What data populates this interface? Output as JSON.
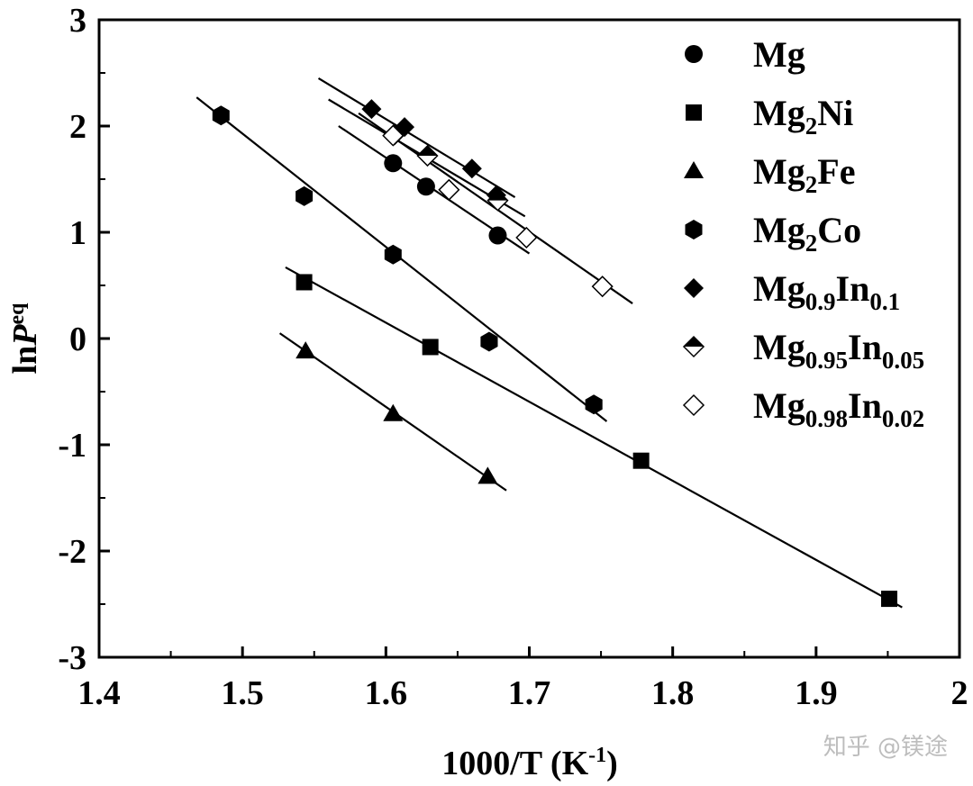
{
  "chart_data": {
    "type": "scatter",
    "xlabel": "1000/T (K",
    "xlabel_sup": "-1",
    "xlabel_close": ")",
    "ylabel": "ln",
    "ylabel_p": "P",
    "ylabel_sup": "eq",
    "xlim": [
      1.4,
      2.0
    ],
    "ylim": [
      -3,
      3
    ],
    "x_ticks": [
      1.4,
      1.5,
      1.6,
      1.7,
      1.8,
      1.9,
      2.0
    ],
    "x_tick_labels": [
      "1.4",
      "1.5",
      "1.6",
      "1.7",
      "1.8",
      "1.9",
      "2"
    ],
    "y_ticks": [
      -3,
      -2,
      -1,
      0,
      1,
      2,
      3
    ],
    "y_tick_labels": [
      "-3",
      "-2",
      "-1",
      "0",
      "1",
      "2",
      "3"
    ],
    "grid": false,
    "legend_position": "top-right",
    "series": [
      {
        "name": "Mg",
        "legend": [
          {
            "t": "Mg",
            "s": ""
          }
        ],
        "marker": "circle",
        "x": [
          1.605,
          1.628,
          1.678
        ],
        "y": [
          1.65,
          1.43,
          0.97
        ],
        "fit": [
          [
            1.567,
            2.0
          ],
          [
            1.7,
            0.8
          ]
        ]
      },
      {
        "name": "Mg2Ni",
        "legend": [
          {
            "t": "Mg",
            "s": ""
          },
          {
            "t": "2",
            "s": "sub"
          },
          {
            "t": "Ni",
            "s": ""
          }
        ],
        "marker": "square",
        "x": [
          1.543,
          1.631,
          1.778,
          1.951
        ],
        "y": [
          0.53,
          -0.08,
          -1.15,
          -2.45
        ],
        "fit": [
          [
            1.53,
            0.67
          ],
          [
            1.96,
            -2.53
          ]
        ]
      },
      {
        "name": "Mg2Fe",
        "legend": [
          {
            "t": "Mg",
            "s": ""
          },
          {
            "t": "2",
            "s": "sub"
          },
          {
            "t": "Fe",
            "s": ""
          }
        ],
        "marker": "triangle",
        "x": [
          1.544,
          1.605,
          1.671
        ],
        "y": [
          -0.12,
          -0.71,
          -1.3
        ],
        "fit": [
          [
            1.526,
            0.05
          ],
          [
            1.684,
            -1.43
          ]
        ]
      },
      {
        "name": "Mg2Co",
        "legend": [
          {
            "t": "Mg",
            "s": ""
          },
          {
            "t": "2",
            "s": "sub"
          },
          {
            "t": "Co",
            "s": ""
          }
        ],
        "marker": "hexagon",
        "x": [
          1.485,
          1.543,
          1.605,
          1.672,
          1.745
        ],
        "y": [
          2.1,
          1.34,
          0.79,
          -0.03,
          -0.62
        ],
        "fit": [
          [
            1.468,
            2.27
          ],
          [
            1.754,
            -0.78
          ]
        ]
      },
      {
        "name": "Mg0.9In0.1",
        "legend": [
          {
            "t": "Mg",
            "s": ""
          },
          {
            "t": "0.9",
            "s": "sub"
          },
          {
            "t": "In",
            "s": ""
          },
          {
            "t": "0.1",
            "s": "sub"
          }
        ],
        "marker": "diamond",
        "x": [
          1.59,
          1.613,
          1.66,
          1.677
        ],
        "y": [
          2.16,
          1.99,
          1.6,
          1.35
        ],
        "fit": [
          [
            1.553,
            2.45
          ],
          [
            1.69,
            1.33
          ]
        ]
      },
      {
        "name": "Mg0.95In0.05",
        "legend": [
          {
            "t": "Mg",
            "s": ""
          },
          {
            "t": "0.95",
            "s": "sub"
          },
          {
            "t": "In",
            "s": ""
          },
          {
            "t": "0.05",
            "s": "sub"
          }
        ],
        "marker": "diamond-half",
        "x": [
          1.606,
          1.629,
          1.678
        ],
        "y": [
          1.92,
          1.72,
          1.3
        ],
        "fit": [
          [
            1.56,
            2.25
          ],
          [
            1.697,
            1.15
          ]
        ]
      },
      {
        "name": "Mg0.98In0.02",
        "legend": [
          {
            "t": "Mg",
            "s": ""
          },
          {
            "t": "0.98",
            "s": "sub"
          },
          {
            "t": "In",
            "s": ""
          },
          {
            "t": "0.02",
            "s": "sub"
          }
        ],
        "marker": "diamond-open",
        "x": [
          1.605,
          1.644,
          1.698,
          1.751
        ],
        "y": [
          1.91,
          1.4,
          0.95,
          0.49
        ],
        "fit": [
          [
            1.581,
            2.12
          ],
          [
            1.772,
            0.33
          ]
        ]
      }
    ]
  },
  "watermark": "知乎 @镁途"
}
